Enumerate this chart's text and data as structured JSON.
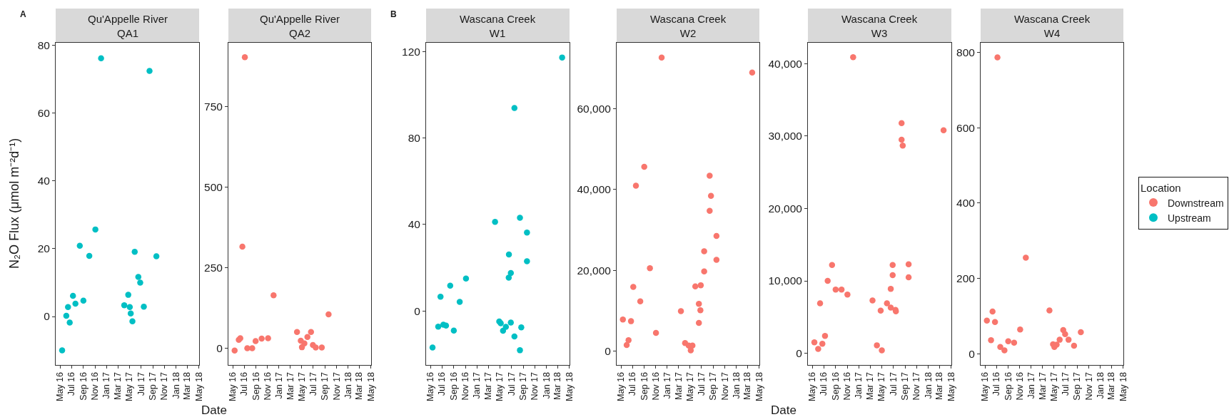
{
  "chart_data": [
    {
      "type": "scatter",
      "title": "Qu'Appelle River\nQA1",
      "ylabel": "N₂O Flux (μmol m⁻²d⁻¹)",
      "xlabel": "Date",
      "annotations": [
        "A"
      ],
      "marker": "circle",
      "x": [
        "2016-05-12",
        "2016-06-03",
        "2016-06-12",
        "2016-06-21",
        "2016-07-08",
        "2016-07-21",
        "2016-08-13",
        "2016-09-01",
        "2016-10-02",
        "2016-11-03",
        "2016-12-03",
        "2017-04-04",
        "2017-04-25",
        "2017-05-03",
        "2017-05-08",
        "2017-05-17",
        "2017-05-29",
        "2017-06-17",
        "2017-06-27",
        "2017-07-16",
        "2017-08-15",
        "2017-09-20"
      ],
      "series": [
        {
          "name": "Upstream",
          "color": "#00bfc4",
          "values": [
            -10,
            0.2,
            2.8,
            -1.8,
            6.1,
            3.8,
            20.9,
            4.7,
            17.9,
            25.7,
            76.2,
            3.3,
            6.4,
            2.8,
            0.9,
            -1.4,
            19.1,
            11.7,
            10,
            2.9,
            72.5,
            17.8
          ]
        }
      ],
      "xlim": [
        "2016-04-08",
        "2018-05-03"
      ],
      "xticks": [
        {
          "value": "2016-05-01",
          "label": "May 16"
        },
        {
          "value": "2016-07-01",
          "label": "Jul 16"
        },
        {
          "value": "2016-09-01",
          "label": "Sep 16"
        },
        {
          "value": "2016-11-01",
          "label": "Nov 16"
        },
        {
          "value": "2017-01-01",
          "label": "Jan 17"
        },
        {
          "value": "2017-03-01",
          "label": "Mar 17"
        },
        {
          "value": "2017-05-01",
          "label": "May 17"
        },
        {
          "value": "2017-07-01",
          "label": "Jul 17"
        },
        {
          "value": "2017-09-01",
          "label": "Sep 17"
        },
        {
          "value": "2017-11-01",
          "label": "Nov 17"
        },
        {
          "value": "2018-01-01",
          "label": "Jan 18"
        },
        {
          "value": "2018-03-01",
          "label": "Mar 18"
        },
        {
          "value": "2018-05-01",
          "label": "May 18"
        }
      ],
      "ylim": [
        -14.3,
        80.8
      ],
      "yticks": [
        0,
        20,
        40,
        60,
        80
      ]
    },
    {
      "type": "scatter",
      "title": "Qu'Appelle River\nQA2",
      "marker": "circle",
      "x": [
        "2016-05-11",
        "2016-06-02",
        "2016-06-10",
        "2016-06-21",
        "2016-07-04",
        "2016-07-17",
        "2016-08-12",
        "2016-08-30",
        "2016-10-01",
        "2016-11-04",
        "2016-12-03",
        "2017-04-06",
        "2017-04-26",
        "2017-05-02",
        "2017-05-15",
        "2017-05-31",
        "2017-06-19",
        "2017-06-29",
        "2017-07-14",
        "2017-08-15",
        "2017-09-20"
      ],
      "series": [
        {
          "name": "Downstream",
          "color": "#f8766d",
          "values": [
            -7,
            26,
            31,
            315,
            902,
            0,
            0,
            22,
            30,
            31,
            164,
            50,
            23,
            3,
            15,
            35,
            50,
            10,
            2,
            2,
            105
          ]
        }
      ],
      "xlim": [
        "2016-04-08",
        "2018-05-03"
      ],
      "xticks": [
        {
          "value": "2016-05-01",
          "label": "May 16"
        },
        {
          "value": "2016-07-01",
          "label": "Jul 16"
        },
        {
          "value": "2016-09-01",
          "label": "Sep 16"
        },
        {
          "value": "2016-11-01",
          "label": "Nov 16"
        },
        {
          "value": "2017-01-01",
          "label": "Jan 17"
        },
        {
          "value": "2017-03-01",
          "label": "Mar 17"
        },
        {
          "value": "2017-05-01",
          "label": "May 17"
        },
        {
          "value": "2017-07-01",
          "label": "Jul 17"
        },
        {
          "value": "2017-09-01",
          "label": "Sep 17"
        },
        {
          "value": "2017-11-01",
          "label": "Nov 17"
        },
        {
          "value": "2018-01-01",
          "label": "Jan 18"
        },
        {
          "value": "2018-03-01",
          "label": "Mar 18"
        },
        {
          "value": "2018-05-01",
          "label": "May 18"
        }
      ],
      "ylim": [
        -52,
        947
      ],
      "yticks": [
        0,
        250,
        500,
        750
      ]
    },
    {
      "type": "scatter",
      "title": "Wascana Creek\nW1",
      "annotations": [
        "B"
      ],
      "marker": "circle",
      "x": [
        "2016-05-12",
        "2016-06-11",
        "2016-06-23",
        "2016-07-08",
        "2016-07-22",
        "2016-08-13",
        "2016-09-01",
        "2016-10-02",
        "2016-11-04",
        "2017-04-06",
        "2017-04-28",
        "2017-05-06",
        "2017-05-18",
        "2017-06-02",
        "2017-06-17",
        "2017-06-18",
        "2017-06-28",
        "2017-06-28",
        "2017-07-17",
        "2017-07-17",
        "2017-08-15",
        "2017-08-15",
        "2017-08-22",
        "2017-09-21",
        "2017-09-21",
        "2018-03-25"
      ],
      "series": [
        {
          "name": "Upstream",
          "color": "#00bfc4",
          "values": [
            -16.9,
            -7.3,
            6.6,
            -6.4,
            -6.8,
            11.7,
            -9.1,
            4.2,
            15,
            41.2,
            -4.9,
            -5.7,
            -9.2,
            -7.4,
            15.4,
            26.1,
            -5.4,
            17.5,
            93.8,
            -11.8,
            -18.2,
            43.1,
            -7.6,
            36.2,
            23,
            117.2
          ]
        }
      ],
      "xlim": [
        "2016-04-08",
        "2018-05-03"
      ],
      "xticks": [
        {
          "value": "2016-05-01",
          "label": "May 16"
        },
        {
          "value": "2016-07-01",
          "label": "Jul 16"
        },
        {
          "value": "2016-09-01",
          "label": "Sep 16"
        },
        {
          "value": "2016-11-01",
          "label": "Nov 16"
        },
        {
          "value": "2017-01-01",
          "label": "Jan 17"
        },
        {
          "value": "2017-03-01",
          "label": "Mar 17"
        },
        {
          "value": "2017-05-01",
          "label": "May 17"
        },
        {
          "value": "2017-07-01",
          "label": "Jul 17"
        },
        {
          "value": "2017-09-01",
          "label": "Sep 17"
        },
        {
          "value": "2017-11-01",
          "label": "Nov 17"
        },
        {
          "value": "2018-01-01",
          "label": "Jan 18"
        },
        {
          "value": "2018-03-01",
          "label": "Mar 18"
        },
        {
          "value": "2018-05-01",
          "label": "May 18"
        }
      ],
      "ylim": [
        -25,
        124
      ],
      "yticks": [
        0,
        40,
        80,
        120
      ]
    },
    {
      "type": "scatter",
      "title": "Wascana Creek\nW2",
      "xlabel": "Date",
      "marker": "circle",
      "x": [
        "2016-05-11",
        "2016-05-31",
        "2016-06-10",
        "2016-06-23",
        "2016-07-05",
        "2016-07-19",
        "2016-08-11",
        "2016-09-01",
        "2016-10-01",
        "2016-11-02",
        "2016-12-02",
        "2017-03-14",
        "2017-04-05",
        "2017-04-24",
        "2017-05-05",
        "2017-05-14",
        "2017-05-29",
        "2017-06-17",
        "2017-06-17",
        "2017-06-25",
        "2017-06-27",
        "2017-07-15",
        "2017-07-15",
        "2017-08-13",
        "2017-08-13",
        "2017-08-20",
        "2017-09-18",
        "2017-09-18",
        "2018-03-26"
      ],
      "series": [
        {
          "name": "Downstream",
          "color": "#f8766d",
          "values": [
            7800,
            1500,
            2700,
            7400,
            15900,
            40900,
            12300,
            45600,
            20500,
            4500,
            72600,
            9900,
            2000,
            1400,
            200,
            1400,
            16000,
            11700,
            7000,
            10100,
            16300,
            24700,
            19700,
            43400,
            34700,
            38400,
            28500,
            22600,
            68900
          ]
        }
      ],
      "xlim": [
        "2016-04-08",
        "2018-05-03"
      ],
      "xticks": [
        {
          "value": "2016-05-01",
          "label": "May 16"
        },
        {
          "value": "2016-07-01",
          "label": "Jul 16"
        },
        {
          "value": "2016-09-01",
          "label": "Sep 16"
        },
        {
          "value": "2016-11-01",
          "label": "Nov 16"
        },
        {
          "value": "2017-01-01",
          "label": "Jan 17"
        },
        {
          "value": "2017-03-01",
          "label": "Mar 17"
        },
        {
          "value": "2017-05-01",
          "label": "May 17"
        },
        {
          "value": "2017-07-01",
          "label": "Jul 17"
        },
        {
          "value": "2017-09-01",
          "label": "Sep 17"
        },
        {
          "value": "2017-11-01",
          "label": "Nov 17"
        },
        {
          "value": "2018-01-01",
          "label": "Jan 18"
        },
        {
          "value": "2018-03-01",
          "label": "Mar 18"
        },
        {
          "value": "2018-05-01",
          "label": "May 18"
        }
      ],
      "ylim": [
        -3420,
        76260
      ],
      "yticks": [
        0,
        {
          "value": 20000,
          "label": "20,000"
        },
        {
          "value": 40000,
          "label": "40,000"
        },
        {
          "value": 60000,
          "label": "60,000"
        }
      ]
    },
    {
      "type": "scatter",
      "title": "Wascana Creek\nW3",
      "marker": "circle",
      "x": [
        "2016-05-12",
        "2016-06-01",
        "2016-06-11",
        "2016-06-23",
        "2016-07-07",
        "2016-07-21",
        "2016-08-13",
        "2016-09-01",
        "2016-10-02",
        "2016-11-02",
        "2016-12-02",
        "2017-03-14",
        "2017-04-06",
        "2017-04-26",
        "2017-05-02",
        "2017-05-29",
        "2017-06-18",
        "2017-06-18",
        "2017-06-28",
        "2017-06-28",
        "2017-07-13",
        "2017-07-15",
        "2017-08-14",
        "2017-08-14",
        "2017-08-20",
        "2017-09-20",
        "2017-09-20",
        "2018-03-23"
      ],
      "series": [
        {
          "name": "Downstream",
          "color": "#f8766d",
          "values": [
            1500,
            600,
            6900,
            1300,
            2400,
            10000,
            12200,
            8800,
            8800,
            8100,
            40900,
            7300,
            1100,
            5900,
            400,
            6900,
            8900,
            6300,
            12200,
            10800,
            6000,
            5800,
            31800,
            29500,
            28700,
            12300,
            10500,
            30800
          ]
        }
      ],
      "xlim": [
        "2016-04-08",
        "2018-05-03"
      ],
      "xticks": [
        {
          "value": "2016-05-01",
          "label": "May 16"
        },
        {
          "value": "2016-07-01",
          "label": "Jul 16"
        },
        {
          "value": "2016-09-01",
          "label": "Sep 16"
        },
        {
          "value": "2016-11-01",
          "label": "Nov 16"
        },
        {
          "value": "2017-01-01",
          "label": "Jan 17"
        },
        {
          "value": "2017-03-01",
          "label": "Mar 17"
        },
        {
          "value": "2017-05-01",
          "label": "May 17"
        },
        {
          "value": "2017-07-01",
          "label": "Jul 17"
        },
        {
          "value": "2017-09-01",
          "label": "Sep 17"
        },
        {
          "value": "2017-11-01",
          "label": "Nov 17"
        },
        {
          "value": "2018-01-01",
          "label": "Jan 18"
        },
        {
          "value": "2018-03-01",
          "label": "Mar 18"
        },
        {
          "value": "2018-05-01",
          "label": "May 18"
        }
      ],
      "ylim": [
        -1620,
        42900
      ],
      "yticks": [
        0,
        {
          "value": 10000,
          "label": "10,000"
        },
        {
          "value": 20000,
          "label": "20,000"
        },
        {
          "value": 30000,
          "label": "30,000"
        },
        {
          "value": 40000,
          "label": "40,000"
        }
      ]
    },
    {
      "type": "scatter",
      "title": "Wascana Creek\nW4",
      "legend": "right",
      "legend_title": "Location",
      "marker": "circle",
      "x": [
        "2016-05-11",
        "2016-06-02",
        "2016-06-10",
        "2016-06-23",
        "2016-07-06",
        "2016-07-21",
        "2016-08-12",
        "2016-09-01",
        "2016-10-02",
        "2016-11-03",
        "2016-12-03",
        "2017-04-07",
        "2017-04-26",
        "2017-05-03",
        "2017-05-15",
        "2017-05-31",
        "2017-06-19",
        "2017-06-29",
        "2017-07-17",
        "2017-08-15",
        "2017-09-20"
      ],
      "series": [
        {
          "name": "Downstream",
          "color": "#f8766d",
          "values": [
            88,
            36,
            112,
            84,
            787,
            18,
            9,
            33,
            29,
            64,
            255,
            115,
            25,
            18,
            24,
            37,
            63,
            52,
            37,
            21,
            57
          ]
        }
      ],
      "xlim": [
        "2016-04-08",
        "2018-05-03"
      ],
      "xticks": [
        {
          "value": "2016-05-01",
          "label": "May 16"
        },
        {
          "value": "2016-07-01",
          "label": "Jul 16"
        },
        {
          "value": "2016-09-01",
          "label": "Sep 16"
        },
        {
          "value": "2016-11-01",
          "label": "Nov 16"
        },
        {
          "value": "2017-01-01",
          "label": "Jan 17"
        },
        {
          "value": "2017-03-01",
          "label": "Mar 17"
        },
        {
          "value": "2017-05-01",
          "label": "May 17"
        },
        {
          "value": "2017-07-01",
          "label": "Jul 17"
        },
        {
          "value": "2017-09-01",
          "label": "Sep 17"
        },
        {
          "value": "2017-11-01",
          "label": "Nov 17"
        },
        {
          "value": "2018-01-01",
          "label": "Jan 18"
        },
        {
          "value": "2018-03-01",
          "label": "Mar 18"
        },
        {
          "value": "2018-05-01",
          "label": "May 18"
        }
      ],
      "ylim": [
        -30,
        826
      ],
      "yticks": [
        0,
        200,
        400,
        600,
        800
      ]
    }
  ]
}
